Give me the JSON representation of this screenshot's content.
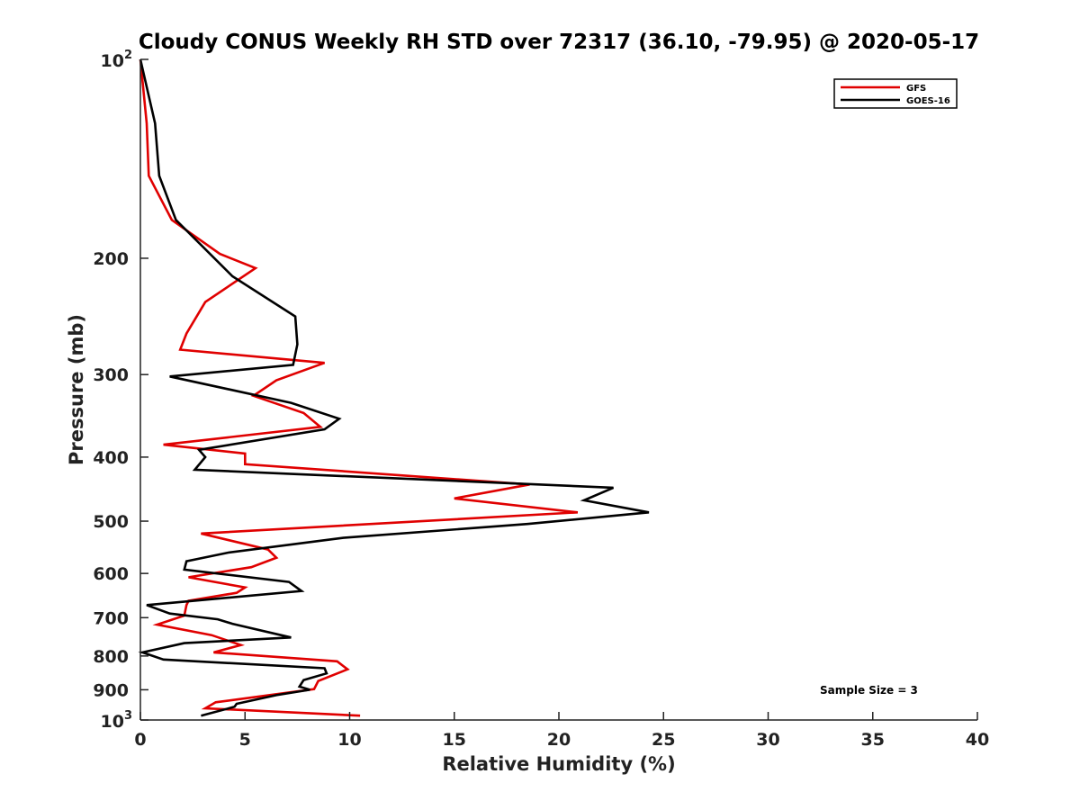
{
  "chart_data": {
    "type": "line",
    "title": "Cloudy CONUS Weekly RH STD over 72317 (36.10, -79.95) @ 2020-05-17",
    "xlabel": "Relative Humidity (%)",
    "ylabel": "Pressure (mb)",
    "xlim": [
      0,
      40
    ],
    "ylim": [
      100,
      1000
    ],
    "y_scale": "log",
    "y_reversed": true,
    "grid": false,
    "legend_position": "top-right",
    "x_ticks": [
      "0",
      "5",
      "10",
      "15",
      "20",
      "25",
      "30",
      "35",
      "40"
    ],
    "y_ticks": [
      {
        "value": 100,
        "base": "10",
        "exp": "2"
      },
      {
        "value": 200,
        "label": "200"
      },
      {
        "value": 300,
        "label": "300"
      },
      {
        "value": 400,
        "label": "400"
      },
      {
        "value": 500,
        "label": "500"
      },
      {
        "value": 600,
        "label": "600"
      },
      {
        "value": 700,
        "label": "700"
      },
      {
        "value": 800,
        "label": "800"
      },
      {
        "value": 900,
        "label": "900"
      },
      {
        "value": 1000,
        "base": "10",
        "exp": "3"
      }
    ],
    "annotation": "Sample Size = 3",
    "series": [
      {
        "name": "GFS",
        "color": "#e00000",
        "points": [
          [
            0.0,
            100
          ],
          [
            0.3,
            125
          ],
          [
            0.4,
            150
          ],
          [
            1.5,
            175
          ],
          [
            3.8,
            197
          ],
          [
            5.5,
            207
          ],
          [
            3.1,
            233
          ],
          [
            2.2,
            260
          ],
          [
            1.9,
            275
          ],
          [
            8.8,
            288
          ],
          [
            6.5,
            306
          ],
          [
            5.4,
            323
          ],
          [
            7.8,
            343
          ],
          [
            8.6,
            360
          ],
          [
            1.1,
            383
          ],
          [
            5.0,
            395
          ],
          [
            5.0,
            410
          ],
          [
            18.6,
            440
          ],
          [
            15.0,
            462
          ],
          [
            20.9,
            485
          ],
          [
            2.9,
            522
          ],
          [
            6.1,
            552
          ],
          [
            6.5,
            568
          ],
          [
            5.3,
            587
          ],
          [
            2.3,
            608
          ],
          [
            5.0,
            630
          ],
          [
            4.6,
            642
          ],
          [
            2.3,
            660
          ],
          [
            2.2,
            670
          ],
          [
            2.1,
            695
          ],
          [
            0.8,
            717
          ],
          [
            3.4,
            744
          ],
          [
            4.8,
            770
          ],
          [
            3.5,
            790
          ],
          [
            9.4,
            815
          ],
          [
            9.9,
            838
          ],
          [
            8.5,
            873
          ],
          [
            8.3,
            898
          ],
          [
            3.6,
            940
          ],
          [
            3.1,
            960
          ],
          [
            10.5,
            985
          ]
        ]
      },
      {
        "name": "GOES-16",
        "color": "#000000",
        "points": [
          [
            0.0,
            100
          ],
          [
            0.7,
            125
          ],
          [
            0.9,
            150
          ],
          [
            1.7,
            175
          ],
          [
            4.4,
            213
          ],
          [
            7.4,
            245
          ],
          [
            7.5,
            270
          ],
          [
            7.3,
            290
          ],
          [
            1.4,
            302
          ],
          [
            7.2,
            331
          ],
          [
            9.5,
            350
          ],
          [
            8.8,
            363
          ],
          [
            2.8,
            390
          ],
          [
            3.1,
            400
          ],
          [
            2.6,
            418
          ],
          [
            22.6,
            445
          ],
          [
            21.2,
            465
          ],
          [
            24.3,
            485
          ],
          [
            18.5,
            505
          ],
          [
            9.7,
            530
          ],
          [
            4.2,
            558
          ],
          [
            2.2,
            575
          ],
          [
            2.1,
            592
          ],
          [
            7.1,
            618
          ],
          [
            7.7,
            638
          ],
          [
            0.3,
            670
          ],
          [
            1.4,
            690
          ],
          [
            3.7,
            704
          ],
          [
            4.4,
            715
          ],
          [
            7.2,
            750
          ],
          [
            2.1,
            765
          ],
          [
            0.1,
            790
          ],
          [
            1.1,
            810
          ],
          [
            8.8,
            835
          ],
          [
            8.9,
            850
          ],
          [
            7.8,
            870
          ],
          [
            7.6,
            890
          ],
          [
            8.1,
            900
          ],
          [
            6.5,
            917
          ],
          [
            4.6,
            945
          ],
          [
            4.5,
            955
          ],
          [
            2.9,
            985
          ]
        ]
      }
    ]
  }
}
